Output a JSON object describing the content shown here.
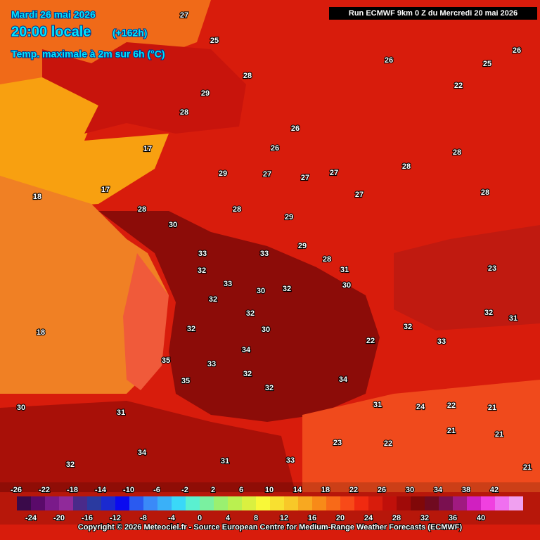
{
  "header": {
    "date": "Mardi 26 mai 2026",
    "time": "20:00 locale",
    "lead": "(+162h)",
    "parameter": "Temp. maximale à 2m sur 6h (°C)",
    "run": "Run ECMWF 9km 0 Z du Mercredi 20 mai 2026"
  },
  "temperatures": [
    27,
    25,
    28,
    29,
    28,
    17,
    17,
    28,
    30,
    33,
    33,
    32,
    33,
    30,
    32,
    29,
    28,
    31,
    30,
    32,
    32,
    30,
    32,
    34,
    33,
    32,
    32,
    34,
    31,
    24,
    22,
    21,
    22,
    32,
    33,
    32,
    31,
    23,
    28,
    28,
    28,
    27,
    27,
    26,
    26,
    27,
    27,
    29,
    28,
    29,
    18,
    18,
    32,
    34,
    31,
    33,
    23,
    22,
    21,
    21,
    21,
    30,
    31,
    35,
    35,
    26,
    22,
    26,
    25
  ],
  "scale": {
    "top_labels": [
      -26,
      -22,
      -18,
      -14,
      -10,
      -6,
      -2,
      2,
      6,
      10,
      14,
      18,
      22,
      26,
      30,
      34,
      38,
      42
    ],
    "bottom_labels": [
      -24,
      -20,
      -16,
      -12,
      -8,
      -4,
      0,
      4,
      8,
      12,
      16,
      20,
      24,
      28,
      32,
      36,
      40
    ]
  },
  "footer": {
    "copyright": "Copyright © 2026 Meteociel.fr - Source European Centre for Medium-Range Weather Forecasts (ECMWF)"
  }
}
